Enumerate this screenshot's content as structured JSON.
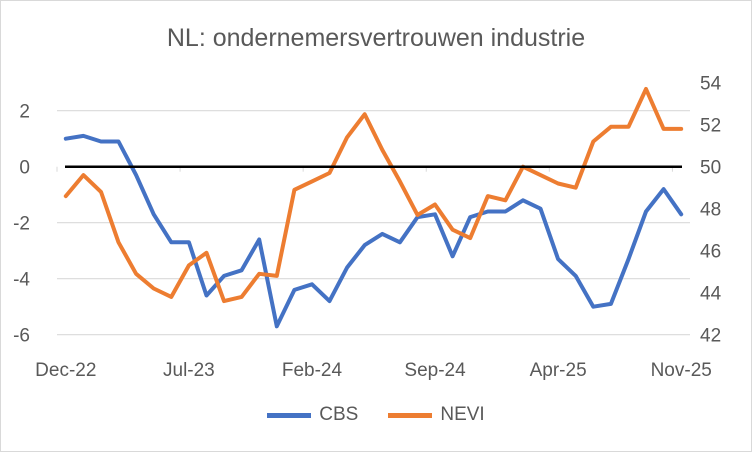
{
  "chart_data": {
    "type": "line",
    "title": "NL: ondernemersvertrouwen industrie",
    "x": [
      "Dec-22",
      "Jan-23",
      "Feb-23",
      "Mar-23",
      "Apr-23",
      "May-23",
      "Jun-23",
      "Jul-23",
      "Aug-23",
      "Sep-23",
      "Oct-23",
      "Nov-23",
      "Dec-23",
      "Jan-24",
      "Feb-24",
      "Mar-24",
      "Apr-24",
      "May-24",
      "Jun-24",
      "Jul-24",
      "Aug-24",
      "Sep-24",
      "Oct-24",
      "Nov-24",
      "Dec-24",
      "Jan-25",
      "Feb-25",
      "Mar-25",
      "Apr-25",
      "May-25",
      "Jun-25",
      "Jul-25",
      "Aug-25",
      "Sep-25",
      "Oct-25",
      "Nov-25"
    ],
    "x_tick_labels": [
      "Dec-22",
      "Jul-23",
      "Feb-24",
      "Sep-24",
      "Apr-25",
      "Nov-25"
    ],
    "y_left": {
      "ylim": [
        -6,
        3
      ],
      "ticks": [
        "2",
        "0",
        "-2",
        "-4",
        "-6"
      ],
      "tick_values": [
        2,
        0,
        -2,
        -4,
        -6
      ]
    },
    "y_right": {
      "ylim": [
        42,
        54.86
      ],
      "ticks": [
        "54",
        "52",
        "50",
        "48",
        "46",
        "44",
        "42"
      ],
      "tick_values": [
        54,
        52,
        50,
        48,
        46,
        44,
        42
      ]
    },
    "grid": true,
    "legend_position": "bottom",
    "series": [
      {
        "name": "CBS",
        "axis": "left",
        "color": "#4472C4",
        "values": [
          1.0,
          1.1,
          0.9,
          0.9,
          -0.3,
          -1.7,
          -2.7,
          -2.7,
          -4.6,
          -3.9,
          -3.7,
          -2.6,
          -5.7,
          -4.4,
          -4.2,
          -4.8,
          -3.6,
          -2.8,
          -2.4,
          -2.7,
          -1.8,
          -1.7,
          -3.2,
          -1.8,
          -1.6,
          -1.6,
          -1.2,
          -1.5,
          -3.3,
          -3.9,
          -5.0,
          -4.9,
          -3.3,
          -1.6,
          -0.8,
          -1.7
        ]
      },
      {
        "name": "NEVI",
        "axis": "right",
        "color": "#ED7D31",
        "values": [
          48.6,
          49.6,
          48.8,
          46.4,
          44.9,
          44.2,
          43.8,
          45.3,
          45.9,
          43.6,
          43.8,
          44.9,
          44.8,
          48.9,
          49.3,
          49.7,
          51.4,
          52.5,
          50.8,
          49.3,
          47.7,
          48.2,
          47.0,
          46.6,
          48.6,
          48.4,
          50.0,
          49.6,
          49.2,
          49.0,
          51.2,
          51.9,
          51.9,
          53.7,
          51.8,
          51.8
        ]
      }
    ]
  }
}
